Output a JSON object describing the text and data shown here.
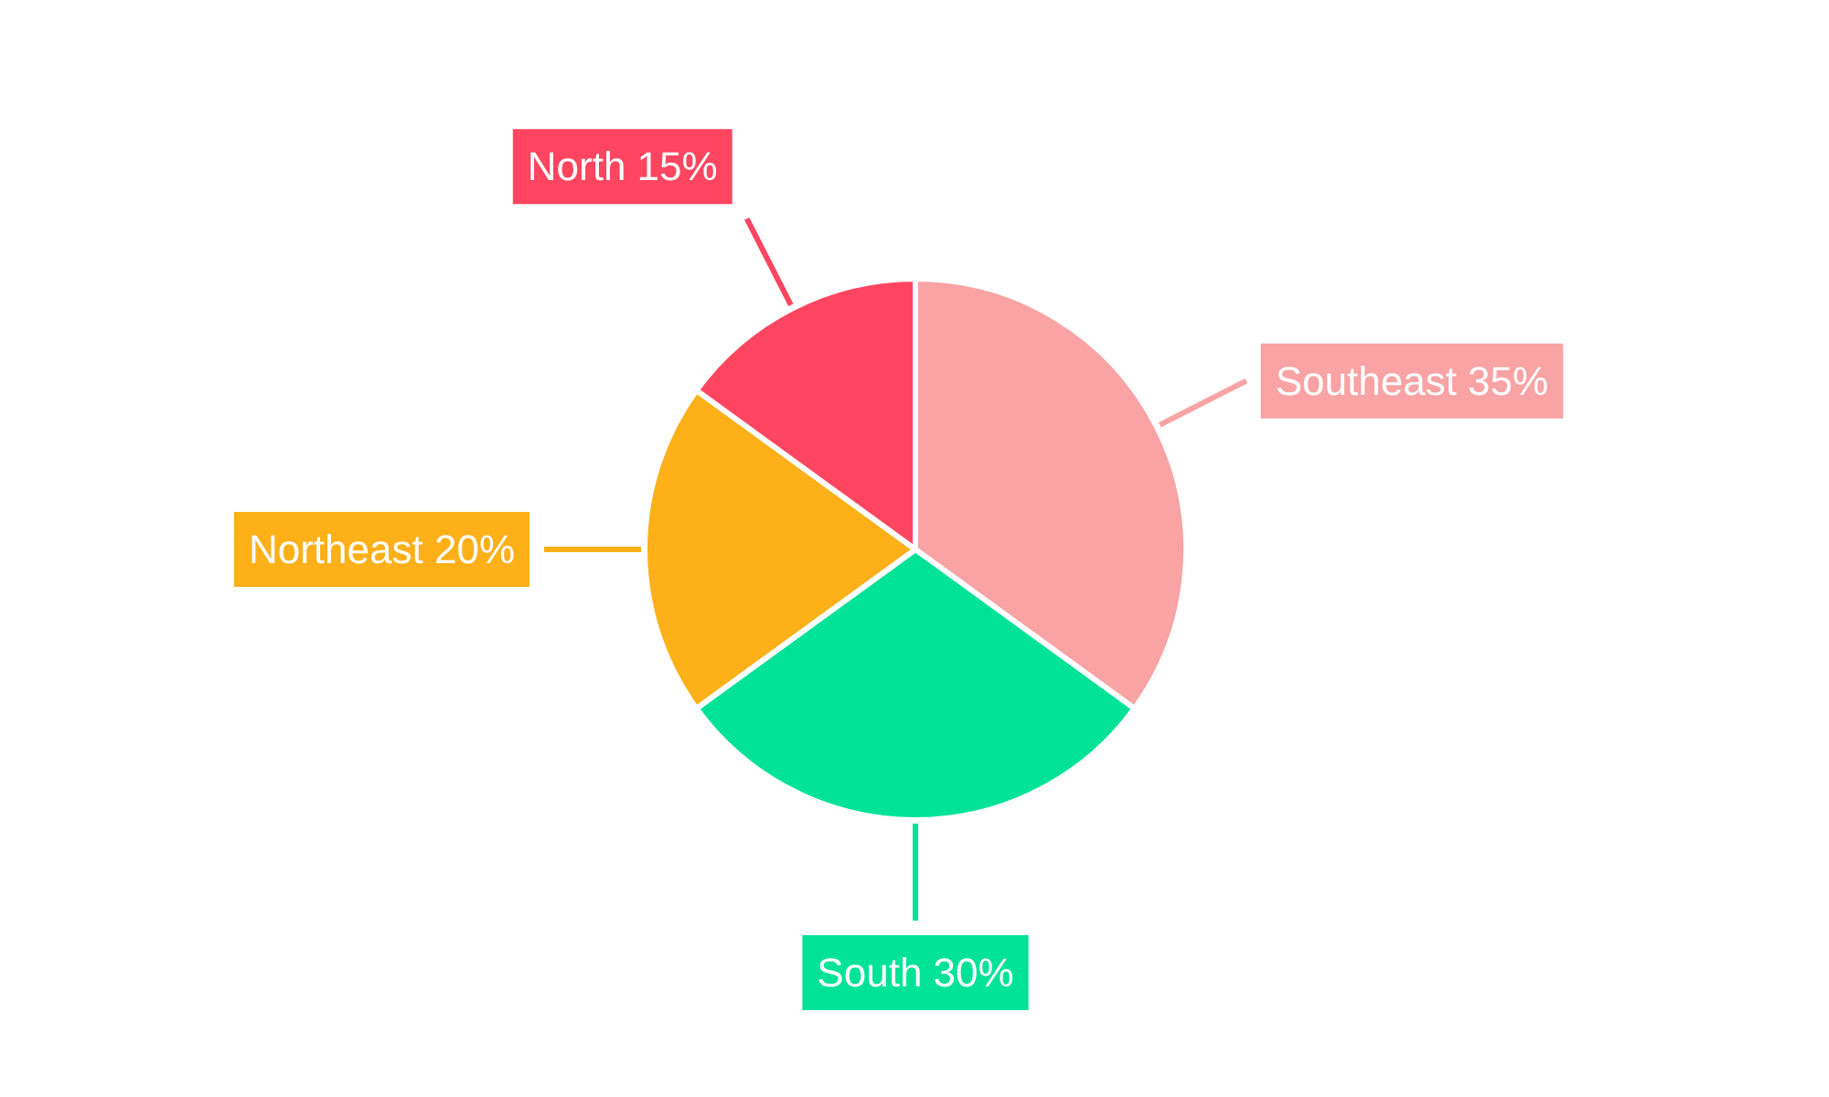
{
  "chart_data": {
    "type": "pie",
    "categories": [
      "Southeast",
      "South",
      "Northeast",
      "North"
    ],
    "values": [
      35,
      30,
      20,
      15
    ],
    "colors": [
      "#f9a3a4",
      "#00e396",
      "#feb019",
      "#ff4560"
    ],
    "value_labels": [
      "35%",
      "30%",
      "20%",
      "15%"
    ]
  }
}
